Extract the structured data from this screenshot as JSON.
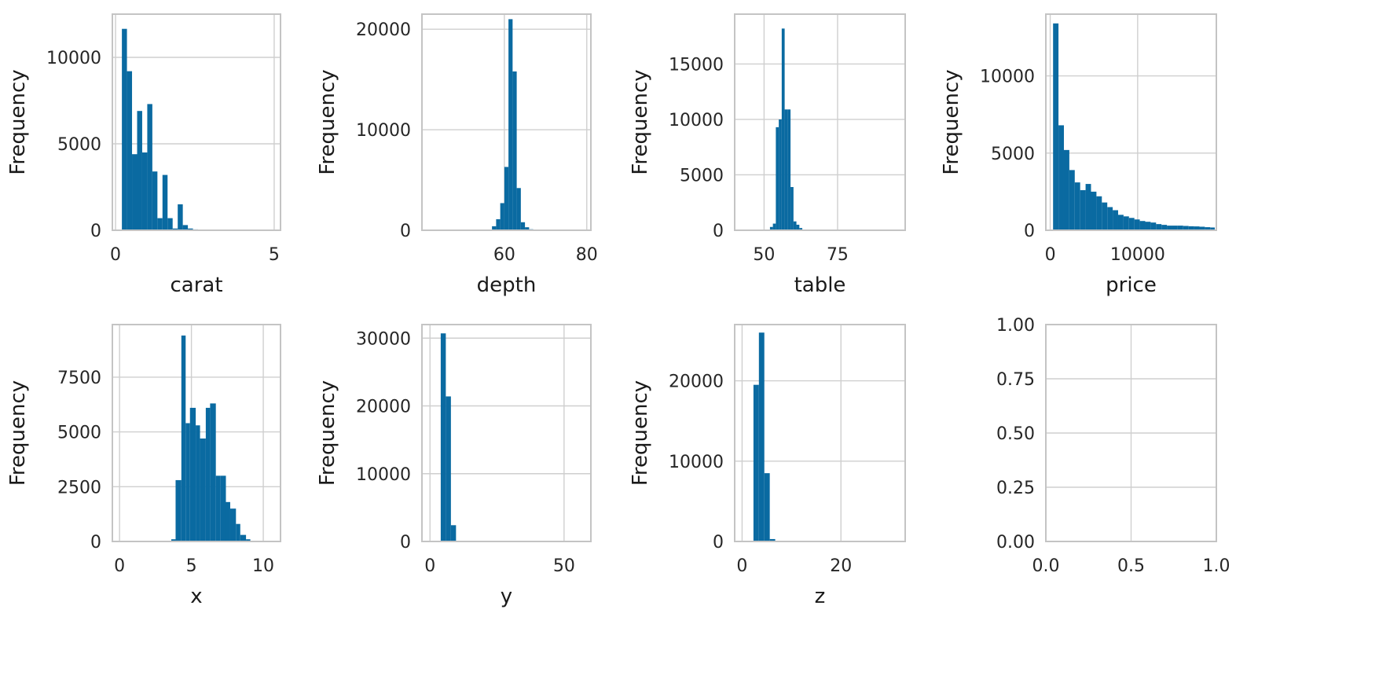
{
  "colors": {
    "bar": "#0a6aa1",
    "grid": "#cfcfcf",
    "frame": "#c4c4c4",
    "text": "#262626"
  },
  "chart_data": [
    {
      "type": "bar",
      "xlabel": "carat",
      "ylabel": "Frequency",
      "xlim": [
        -0.1,
        5.2
      ],
      "ylim": [
        0,
        12500
      ],
      "grid": true,
      "xticks": [
        {
          "v": 0,
          "label": "0"
        },
        {
          "v": 5,
          "label": "5"
        }
      ],
      "yticks": [
        {
          "v": 0,
          "label": "0"
        },
        {
          "v": 5000,
          "label": "5000"
        },
        {
          "v": 10000,
          "label": "10000"
        }
      ],
      "bins": [
        [
          0.2,
          0.36,
          11650
        ],
        [
          0.36,
          0.52,
          9200
        ],
        [
          0.52,
          0.68,
          4400
        ],
        [
          0.68,
          0.84,
          6900
        ],
        [
          0.84,
          1.0,
          4500
        ],
        [
          1.0,
          1.16,
          7300
        ],
        [
          1.16,
          1.32,
          3400
        ],
        [
          1.32,
          1.48,
          700
        ],
        [
          1.48,
          1.64,
          3200
        ],
        [
          1.64,
          1.8,
          700
        ],
        [
          1.8,
          1.96,
          100
        ],
        [
          1.96,
          2.12,
          1500
        ],
        [
          2.12,
          2.28,
          300
        ],
        [
          2.28,
          2.44,
          100
        ],
        [
          2.44,
          2.6,
          50
        ]
      ]
    },
    {
      "type": "bar",
      "xlabel": "depth",
      "ylabel": "Frequency",
      "xlim": [
        40,
        81
      ],
      "ylim": [
        0,
        21500
      ],
      "grid": true,
      "xticks": [
        {
          "v": 60,
          "label": "60"
        },
        {
          "v": 80,
          "label": "80"
        }
      ],
      "yticks": [
        {
          "v": 0,
          "label": "0"
        },
        {
          "v": 10000,
          "label": "10000"
        },
        {
          "v": 20000,
          "label": "20000"
        }
      ],
      "bins": [
        [
          57,
          58,
          400
        ],
        [
          58,
          59,
          1100
        ],
        [
          59,
          60,
          2700
        ],
        [
          60,
          61,
          6300
        ],
        [
          61,
          62,
          21000
        ],
        [
          62,
          63,
          15800
        ],
        [
          63,
          64,
          4200
        ],
        [
          64,
          65,
          800
        ],
        [
          65,
          66,
          300
        ],
        [
          66,
          67,
          100
        ]
      ]
    },
    {
      "type": "bar",
      "xlabel": "table",
      "ylabel": "Frequency",
      "xlim": [
        40,
        98
      ],
      "ylim": [
        0,
        19500
      ],
      "grid": true,
      "xticks": [
        {
          "v": 50,
          "label": "50"
        },
        {
          "v": 75,
          "label": "75"
        }
      ],
      "yticks": [
        {
          "v": 0,
          "label": "0"
        },
        {
          "v": 5000,
          "label": "5000"
        },
        {
          "v": 10000,
          "label": "10000"
        },
        {
          "v": 15000,
          "label": "15000"
        }
      ],
      "bins": [
        [
          52,
          53,
          300
        ],
        [
          53,
          54,
          600
        ],
        [
          54,
          55,
          9300
        ],
        [
          55,
          56,
          10000
        ],
        [
          56,
          57,
          18200
        ],
        [
          57,
          58,
          10900
        ],
        [
          58,
          59,
          10900
        ],
        [
          59,
          60,
          3900
        ],
        [
          60,
          61,
          800
        ],
        [
          61,
          62,
          500
        ],
        [
          62,
          63,
          200
        ]
      ]
    },
    {
      "type": "bar",
      "xlabel": "price",
      "ylabel": "Frequency",
      "xlim": [
        -500,
        19000
      ],
      "ylim": [
        0,
        14000
      ],
      "grid": true,
      "xticks": [
        {
          "v": 0,
          "label": "0"
        },
        {
          "v": 10000,
          "label": "10000"
        }
      ],
      "yticks": [
        {
          "v": 0,
          "label": "0"
        },
        {
          "v": 5000,
          "label": "5000"
        },
        {
          "v": 10000,
          "label": "10000"
        }
      ],
      "bins": [
        [
          326,
          946,
          13400
        ],
        [
          946,
          1566,
          6800
        ],
        [
          1566,
          2186,
          5200
        ],
        [
          2186,
          2806,
          3900
        ],
        [
          2806,
          3426,
          3100
        ],
        [
          3426,
          4046,
          2600
        ],
        [
          4046,
          4666,
          3000
        ],
        [
          4666,
          5286,
          2500
        ],
        [
          5286,
          5906,
          2200
        ],
        [
          5906,
          6526,
          1800
        ],
        [
          6526,
          7146,
          1500
        ],
        [
          7146,
          7766,
          1300
        ],
        [
          7766,
          8386,
          1000
        ],
        [
          8386,
          9006,
          900
        ],
        [
          9006,
          9626,
          800
        ],
        [
          9626,
          10246,
          700
        ],
        [
          10246,
          10866,
          600
        ],
        [
          10866,
          11486,
          550
        ],
        [
          11486,
          12106,
          500
        ],
        [
          12106,
          12726,
          400
        ],
        [
          12726,
          13346,
          350
        ],
        [
          13346,
          13966,
          300
        ],
        [
          13966,
          14586,
          300
        ],
        [
          14586,
          15206,
          300
        ],
        [
          15206,
          15826,
          280
        ],
        [
          15826,
          16446,
          260
        ],
        [
          16446,
          17066,
          250
        ],
        [
          17066,
          17686,
          230
        ],
        [
          17686,
          18306,
          200
        ],
        [
          18306,
          18823,
          180
        ]
      ]
    },
    {
      "type": "bar",
      "xlabel": "x",
      "ylabel": "Frequency",
      "xlim": [
        -0.5,
        11.2
      ],
      "ylim": [
        0,
        9900
      ],
      "grid": true,
      "xticks": [
        {
          "v": 0,
          "label": "0"
        },
        {
          "v": 5,
          "label": "5"
        },
        {
          "v": 10,
          "label": "10"
        }
      ],
      "yticks": [
        {
          "v": 0,
          "label": "0"
        },
        {
          "v": 2500,
          "label": "2500"
        },
        {
          "v": 5000,
          "label": "5000"
        },
        {
          "v": 7500,
          "label": "7500"
        }
      ],
      "bins": [
        [
          3.6,
          3.9,
          100
        ],
        [
          3.9,
          4.3,
          2800
        ],
        [
          4.3,
          4.6,
          9400
        ],
        [
          4.6,
          4.9,
          5400
        ],
        [
          4.9,
          5.3,
          6100
        ],
        [
          5.3,
          5.6,
          5300
        ],
        [
          5.6,
          6.0,
          4700
        ],
        [
          6.0,
          6.3,
          6100
        ],
        [
          6.3,
          6.7,
          6300
        ],
        [
          6.7,
          7.0,
          3000
        ],
        [
          7.0,
          7.4,
          3000
        ],
        [
          7.4,
          7.7,
          1800
        ],
        [
          7.7,
          8.1,
          1500
        ],
        [
          8.1,
          8.4,
          800
        ],
        [
          8.4,
          8.8,
          300
        ],
        [
          8.8,
          9.1,
          100
        ]
      ]
    },
    {
      "type": "bar",
      "xlabel": "y",
      "ylabel": "Frequency",
      "xlim": [
        -3,
        60
      ],
      "ylim": [
        0,
        32000
      ],
      "grid": true,
      "xticks": [
        {
          "v": 0,
          "label": "0"
        },
        {
          "v": 50,
          "label": "50"
        }
      ],
      "yticks": [
        {
          "v": 0,
          "label": "0"
        },
        {
          "v": 10000,
          "label": "10000"
        },
        {
          "v": 20000,
          "label": "20000"
        },
        {
          "v": 30000,
          "label": "30000"
        }
      ],
      "bins": [
        [
          4.0,
          5.9,
          30700
        ],
        [
          5.9,
          7.8,
          21400
        ],
        [
          7.8,
          9.7,
          2400
        ],
        [
          9.7,
          11.6,
          100
        ]
      ]
    },
    {
      "type": "bar",
      "xlabel": "z",
      "ylabel": "Frequency",
      "xlim": [
        -1.5,
        33
      ],
      "ylim": [
        0,
        27000
      ],
      "grid": true,
      "xticks": [
        {
          "v": 0,
          "label": "0"
        },
        {
          "v": 20,
          "label": "20"
        }
      ],
      "yticks": [
        {
          "v": 0,
          "label": "0"
        },
        {
          "v": 10000,
          "label": "10000"
        },
        {
          "v": 20000,
          "label": "20000"
        }
      ],
      "bins": [
        [
          2.3,
          3.4,
          19500
        ],
        [
          3.4,
          4.5,
          26000
        ],
        [
          4.5,
          5.6,
          8500
        ],
        [
          5.6,
          6.7,
          300
        ]
      ]
    },
    {
      "type": "bar",
      "xlabel": "",
      "ylabel": "",
      "xlim": [
        0,
        1
      ],
      "ylim": [
        0,
        1
      ],
      "grid": true,
      "xticks": [
        {
          "v": 0,
          "label": "0.0"
        },
        {
          "v": 0.5,
          "label": "0.5"
        },
        {
          "v": 1,
          "label": "1.0"
        }
      ],
      "yticks": [
        {
          "v": 0,
          "label": "0.00"
        },
        {
          "v": 0.25,
          "label": "0.25"
        },
        {
          "v": 0.5,
          "label": "0.50"
        },
        {
          "v": 0.75,
          "label": "0.75"
        },
        {
          "v": 1,
          "label": "1.00"
        }
      ],
      "bins": []
    }
  ]
}
